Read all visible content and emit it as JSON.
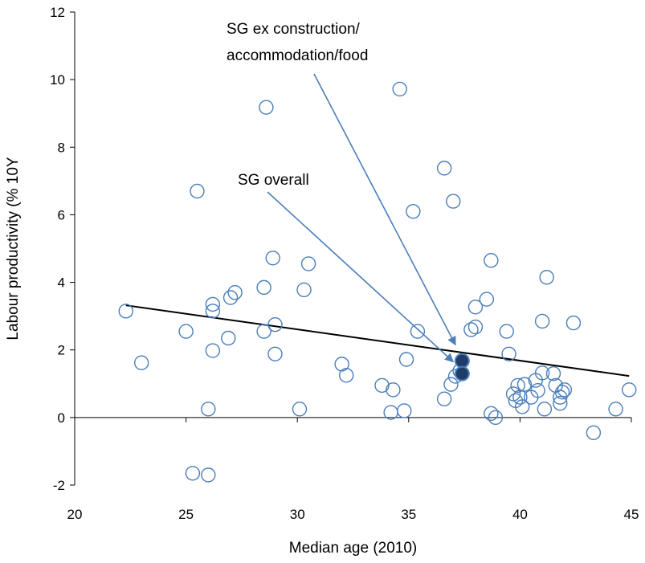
{
  "chart_data": {
    "type": "scatter",
    "xlabel": "Median age (2010)",
    "ylabel": "Labour productivity (% 10Y",
    "xlim": [
      20,
      45
    ],
    "ylim": [
      -2,
      12
    ],
    "x_ticks": [
      20,
      25,
      30,
      35,
      40,
      45
    ],
    "y_ticks": [
      -2,
      0,
      2,
      4,
      6,
      8,
      10,
      12
    ],
    "x_tick_labels": [
      "20",
      "25",
      "30",
      "35",
      "40",
      "45"
    ],
    "y_tick_labels": [
      "-2",
      "0",
      "2",
      "4",
      "6",
      "8",
      "10",
      "12"
    ],
    "grid": false,
    "legend": "none",
    "marker_color": "#4a7ebb",
    "highlight_fill": "#1f3d66",
    "trendline_color": "#000000",
    "series": [
      {
        "marker": "open-circle",
        "points": [
          [
            22.3,
            3.15
          ],
          [
            23.0,
            1.62
          ],
          [
            25.0,
            2.55
          ],
          [
            25.5,
            6.7
          ],
          [
            25.3,
            -1.65
          ],
          [
            26.0,
            -1.7
          ],
          [
            26.0,
            0.25
          ],
          [
            26.2,
            3.35
          ],
          [
            26.2,
            3.15
          ],
          [
            26.2,
            1.98
          ],
          [
            26.9,
            2.35
          ],
          [
            27.0,
            3.55
          ],
          [
            27.2,
            3.7
          ],
          [
            28.5,
            3.85
          ],
          [
            28.5,
            2.55
          ],
          [
            28.6,
            9.18
          ],
          [
            28.9,
            4.72
          ],
          [
            29.0,
            2.75
          ],
          [
            29.0,
            1.88
          ],
          [
            30.1,
            0.25
          ],
          [
            30.3,
            3.78
          ],
          [
            30.5,
            4.55
          ],
          [
            32.0,
            1.58
          ],
          [
            32.2,
            1.25
          ],
          [
            33.8,
            0.95
          ],
          [
            34.2,
            0.15
          ],
          [
            34.3,
            0.82
          ],
          [
            34.6,
            9.72
          ],
          [
            34.8,
            0.2
          ],
          [
            34.9,
            1.72
          ],
          [
            35.2,
            6.1
          ],
          [
            35.4,
            2.55
          ],
          [
            36.6,
            7.38
          ],
          [
            36.6,
            0.55
          ],
          [
            36.9,
            0.98
          ],
          [
            37.0,
            6.4
          ],
          [
            37.1,
            1.22
          ],
          [
            37.3,
            1.38
          ],
          [
            37.8,
            2.6
          ],
          [
            38.0,
            2.68
          ],
          [
            38.0,
            3.27
          ],
          [
            38.5,
            3.5
          ],
          [
            38.7,
            4.65
          ],
          [
            38.7,
            0.12
          ],
          [
            38.9,
            0.0
          ],
          [
            39.4,
            2.55
          ],
          [
            39.5,
            1.88
          ],
          [
            39.7,
            0.7
          ],
          [
            39.8,
            0.5
          ],
          [
            39.9,
            0.95
          ],
          [
            40.0,
            0.6
          ],
          [
            40.1,
            0.32
          ],
          [
            40.2,
            0.98
          ],
          [
            40.5,
            0.6
          ],
          [
            40.7,
            1.1
          ],
          [
            40.8,
            0.8
          ],
          [
            41.0,
            1.32
          ],
          [
            41.0,
            2.85
          ],
          [
            41.1,
            0.25
          ],
          [
            41.2,
            4.15
          ],
          [
            41.5,
            1.3
          ],
          [
            41.6,
            0.95
          ],
          [
            41.8,
            0.6
          ],
          [
            41.8,
            0.42
          ],
          [
            41.9,
            0.75
          ],
          [
            42.0,
            0.82
          ],
          [
            42.4,
            2.8
          ],
          [
            43.3,
            -0.45
          ],
          [
            44.3,
            0.25
          ],
          [
            44.9,
            0.82
          ]
        ]
      },
      {
        "marker": "filled-circle",
        "points": [
          [
            37.4,
            1.68
          ],
          [
            37.4,
            1.3
          ]
        ]
      }
    ],
    "trendline": {
      "x": [
        22.3,
        44.9
      ],
      "y": [
        3.32,
        1.23
      ]
    },
    "annotations": [
      {
        "text_lines": [
          "SG ex construction/",
          "accommodation/food"
        ],
        "target": [
          37.1,
          2.15
        ]
      },
      {
        "text_lines": [
          "SG overall"
        ],
        "target": [
          37.0,
          1.65
        ]
      }
    ]
  }
}
